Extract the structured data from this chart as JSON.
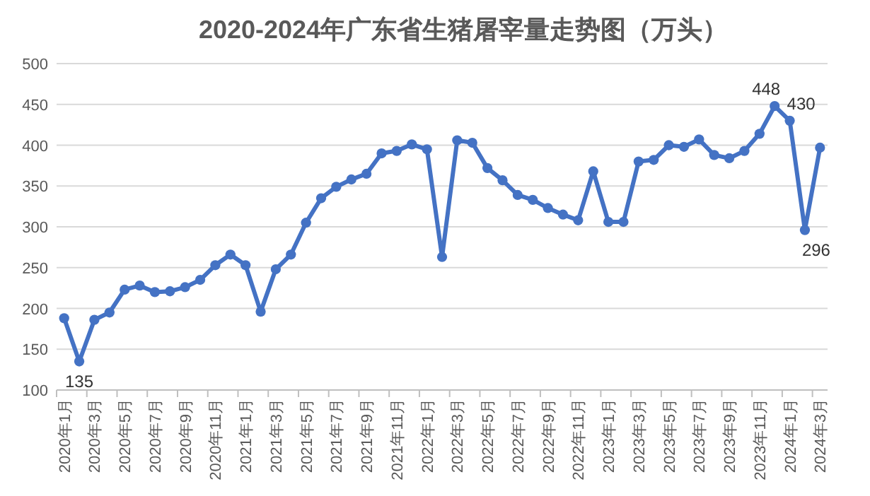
{
  "chart_data": {
    "type": "line",
    "title": "2020-2024年广东省生猪屠宰量走势图（万头）",
    "categories": [
      "2020年1月",
      null,
      "2020年3月",
      null,
      "2020年5月",
      null,
      "2020年7月",
      null,
      "2020年9月",
      null,
      "2020年11月",
      null,
      "2021年1月",
      null,
      "2021年3月",
      null,
      "2021年5月",
      null,
      "2021年7月",
      null,
      "2021年9月",
      null,
      "2021年11月",
      null,
      "2022年1月",
      null,
      "2022年3月",
      null,
      "2022年5月",
      null,
      "2022年7月",
      null,
      "2022年9月",
      null,
      "2022年11月",
      null,
      "2023年1月",
      null,
      "2023年3月",
      null,
      "2023年5月",
      null,
      "2023年7月",
      null,
      "2023年9月",
      null,
      "2023年11月",
      null,
      "2024年1月",
      null,
      "2024年3月"
    ],
    "series": [
      {
        "color": "#4472c4",
        "values": [
          188,
          135,
          186,
          195,
          223,
          228,
          220,
          221,
          226,
          235,
          253,
          266,
          253,
          196,
          248,
          266,
          305,
          335,
          349,
          358,
          365,
          390,
          393,
          401,
          395,
          263,
          406,
          403,
          372,
          357,
          339,
          333,
          323,
          315,
          308,
          368,
          306,
          306,
          380,
          382,
          400,
          398,
          407,
          388,
          384,
          393,
          414,
          448,
          430,
          296,
          397
        ],
        "value_labels": [
          null,
          "135",
          null,
          null,
          null,
          null,
          null,
          null,
          null,
          null,
          null,
          null,
          null,
          null,
          null,
          null,
          null,
          null,
          null,
          null,
          null,
          null,
          null,
          null,
          null,
          null,
          null,
          null,
          null,
          null,
          null,
          null,
          null,
          null,
          null,
          null,
          null,
          null,
          null,
          null,
          null,
          null,
          null,
          null,
          null,
          null,
          null,
          "448",
          "430",
          "296",
          null
        ]
      }
    ],
    "ylim": [
      100,
      500
    ],
    "yticks": [
      100,
      150,
      200,
      250,
      300,
      350,
      400,
      450,
      500
    ],
    "grid": "y",
    "marker": "circle",
    "line_style": "solid"
  }
}
